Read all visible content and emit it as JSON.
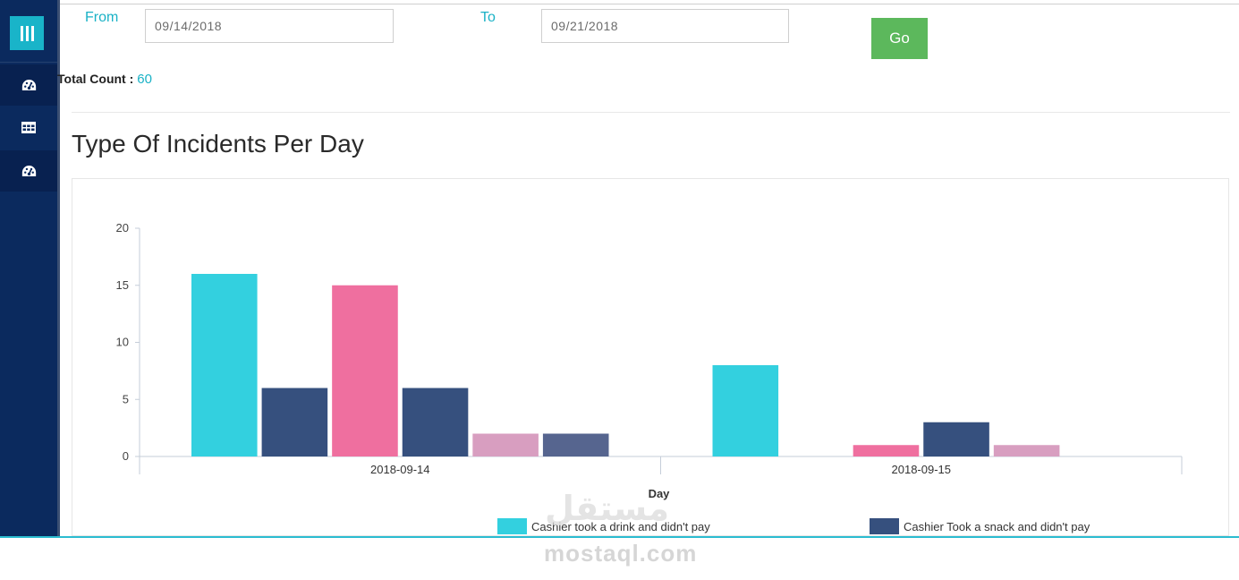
{
  "filters": {
    "from_label": "From",
    "from_value": "09/14/2018",
    "to_label": "To",
    "to_value": "09/21/2018",
    "go_label": "Go"
  },
  "summary": {
    "total_label": "Total Count :",
    "total_value": "60"
  },
  "section": {
    "title": "Type Of Incidents Per Day"
  },
  "sidebar": {
    "items": [
      {
        "icon": "dashboard-icon"
      },
      {
        "icon": "table-icon"
      },
      {
        "icon": "dashboard-icon"
      }
    ]
  },
  "watermark": {
    "arabic": "مستقل",
    "latin": "mostaql.com"
  },
  "colors": {
    "sidebar": "#0b2a5e",
    "accent": "#1ab2c6",
    "go_button": "#5cb85c"
  },
  "chart_data": {
    "type": "bar",
    "title": "Type Of Incidents Per Day",
    "xlabel": "Day",
    "ylabel": "",
    "ylim": [
      0,
      20
    ],
    "yticks": [
      0,
      5,
      10,
      15,
      20
    ],
    "categories": [
      "2018-09-14",
      "2018-09-15"
    ],
    "series": [
      {
        "name": "Cashier took a drink and didn't pay",
        "color": "#33d0df",
        "values": [
          16,
          8
        ]
      },
      {
        "name": "Cashier Took a snack and didn't pay",
        "color": "#36507e",
        "values": [
          6,
          0
        ]
      },
      {
        "name": "",
        "color": "#ef6f9f",
        "values": [
          15,
          1
        ]
      },
      {
        "name": "",
        "color": "#36507e",
        "values": [
          6,
          3
        ]
      },
      {
        "name": "",
        "color": "#d89ec0",
        "values": [
          2,
          1
        ]
      },
      {
        "name": "",
        "color": "#56658f",
        "values": [
          2,
          0
        ]
      }
    ],
    "legend_position": "bottom",
    "grid": false
  }
}
